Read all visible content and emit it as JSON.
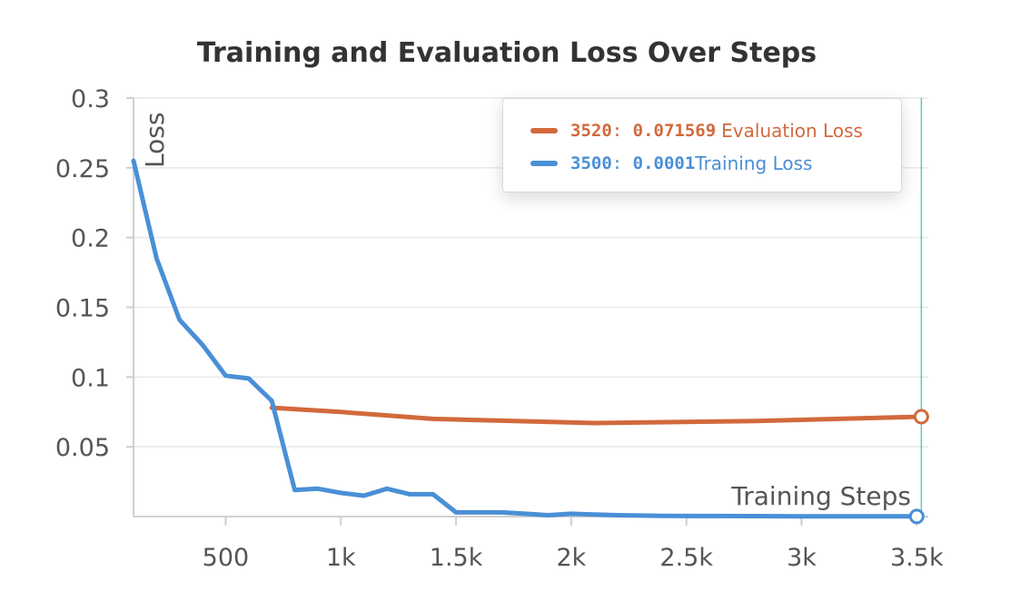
{
  "chart_data": {
    "type": "line",
    "title": "Training and Evaluation Loss Over Steps",
    "xlabel": "Training Steps",
    "ylabel": "Loss",
    "xlim": [
      100,
      3550
    ],
    "ylim": [
      0,
      0.3
    ],
    "x_ticks": [
      500,
      1000,
      1500,
      2000,
      2500,
      3000,
      3500
    ],
    "x_tick_labels": [
      "500",
      "1k",
      "1.5k",
      "2k",
      "2.5k",
      "3k",
      "3.5k"
    ],
    "y_ticks": [
      0.05,
      0.1,
      0.15,
      0.2,
      0.25,
      0.3
    ],
    "y_tick_labels": [
      "0.05",
      "0.1",
      "0.15",
      "0.2",
      "0.25",
      "0.3"
    ],
    "grid": true,
    "legend_position": "top-right",
    "hover_step": 3520,
    "series": [
      {
        "name": "Evaluation Loss",
        "color": "#d2693c",
        "legend_step": "3520",
        "legend_value": "0.071569",
        "x": [
          700,
          1000,
          1400,
          2100,
          2800,
          3520
        ],
        "y": [
          0.078,
          0.075,
          0.07,
          0.067,
          0.0685,
          0.0716
        ]
      },
      {
        "name": "Training Loss",
        "color": "#4a8fd6",
        "legend_step": "3500",
        "legend_value": "0.0001",
        "x": [
          100,
          200,
          300,
          400,
          500,
          600,
          700,
          800,
          900,
          1000,
          1100,
          1200,
          1300,
          1400,
          1500,
          1600,
          1700,
          1800,
          1900,
          2000,
          2200,
          2400,
          2600,
          2800,
          3000,
          3200,
          3500
        ],
        "y": [
          0.255,
          0.185,
          0.141,
          0.123,
          0.101,
          0.099,
          0.083,
          0.019,
          0.02,
          0.017,
          0.015,
          0.02,
          0.016,
          0.016,
          0.003,
          0.003,
          0.003,
          0.002,
          0.001,
          0.002,
          0.001,
          0.0005,
          0.0004,
          0.0003,
          0.0002,
          0.0001,
          0.0001
        ]
      }
    ]
  }
}
